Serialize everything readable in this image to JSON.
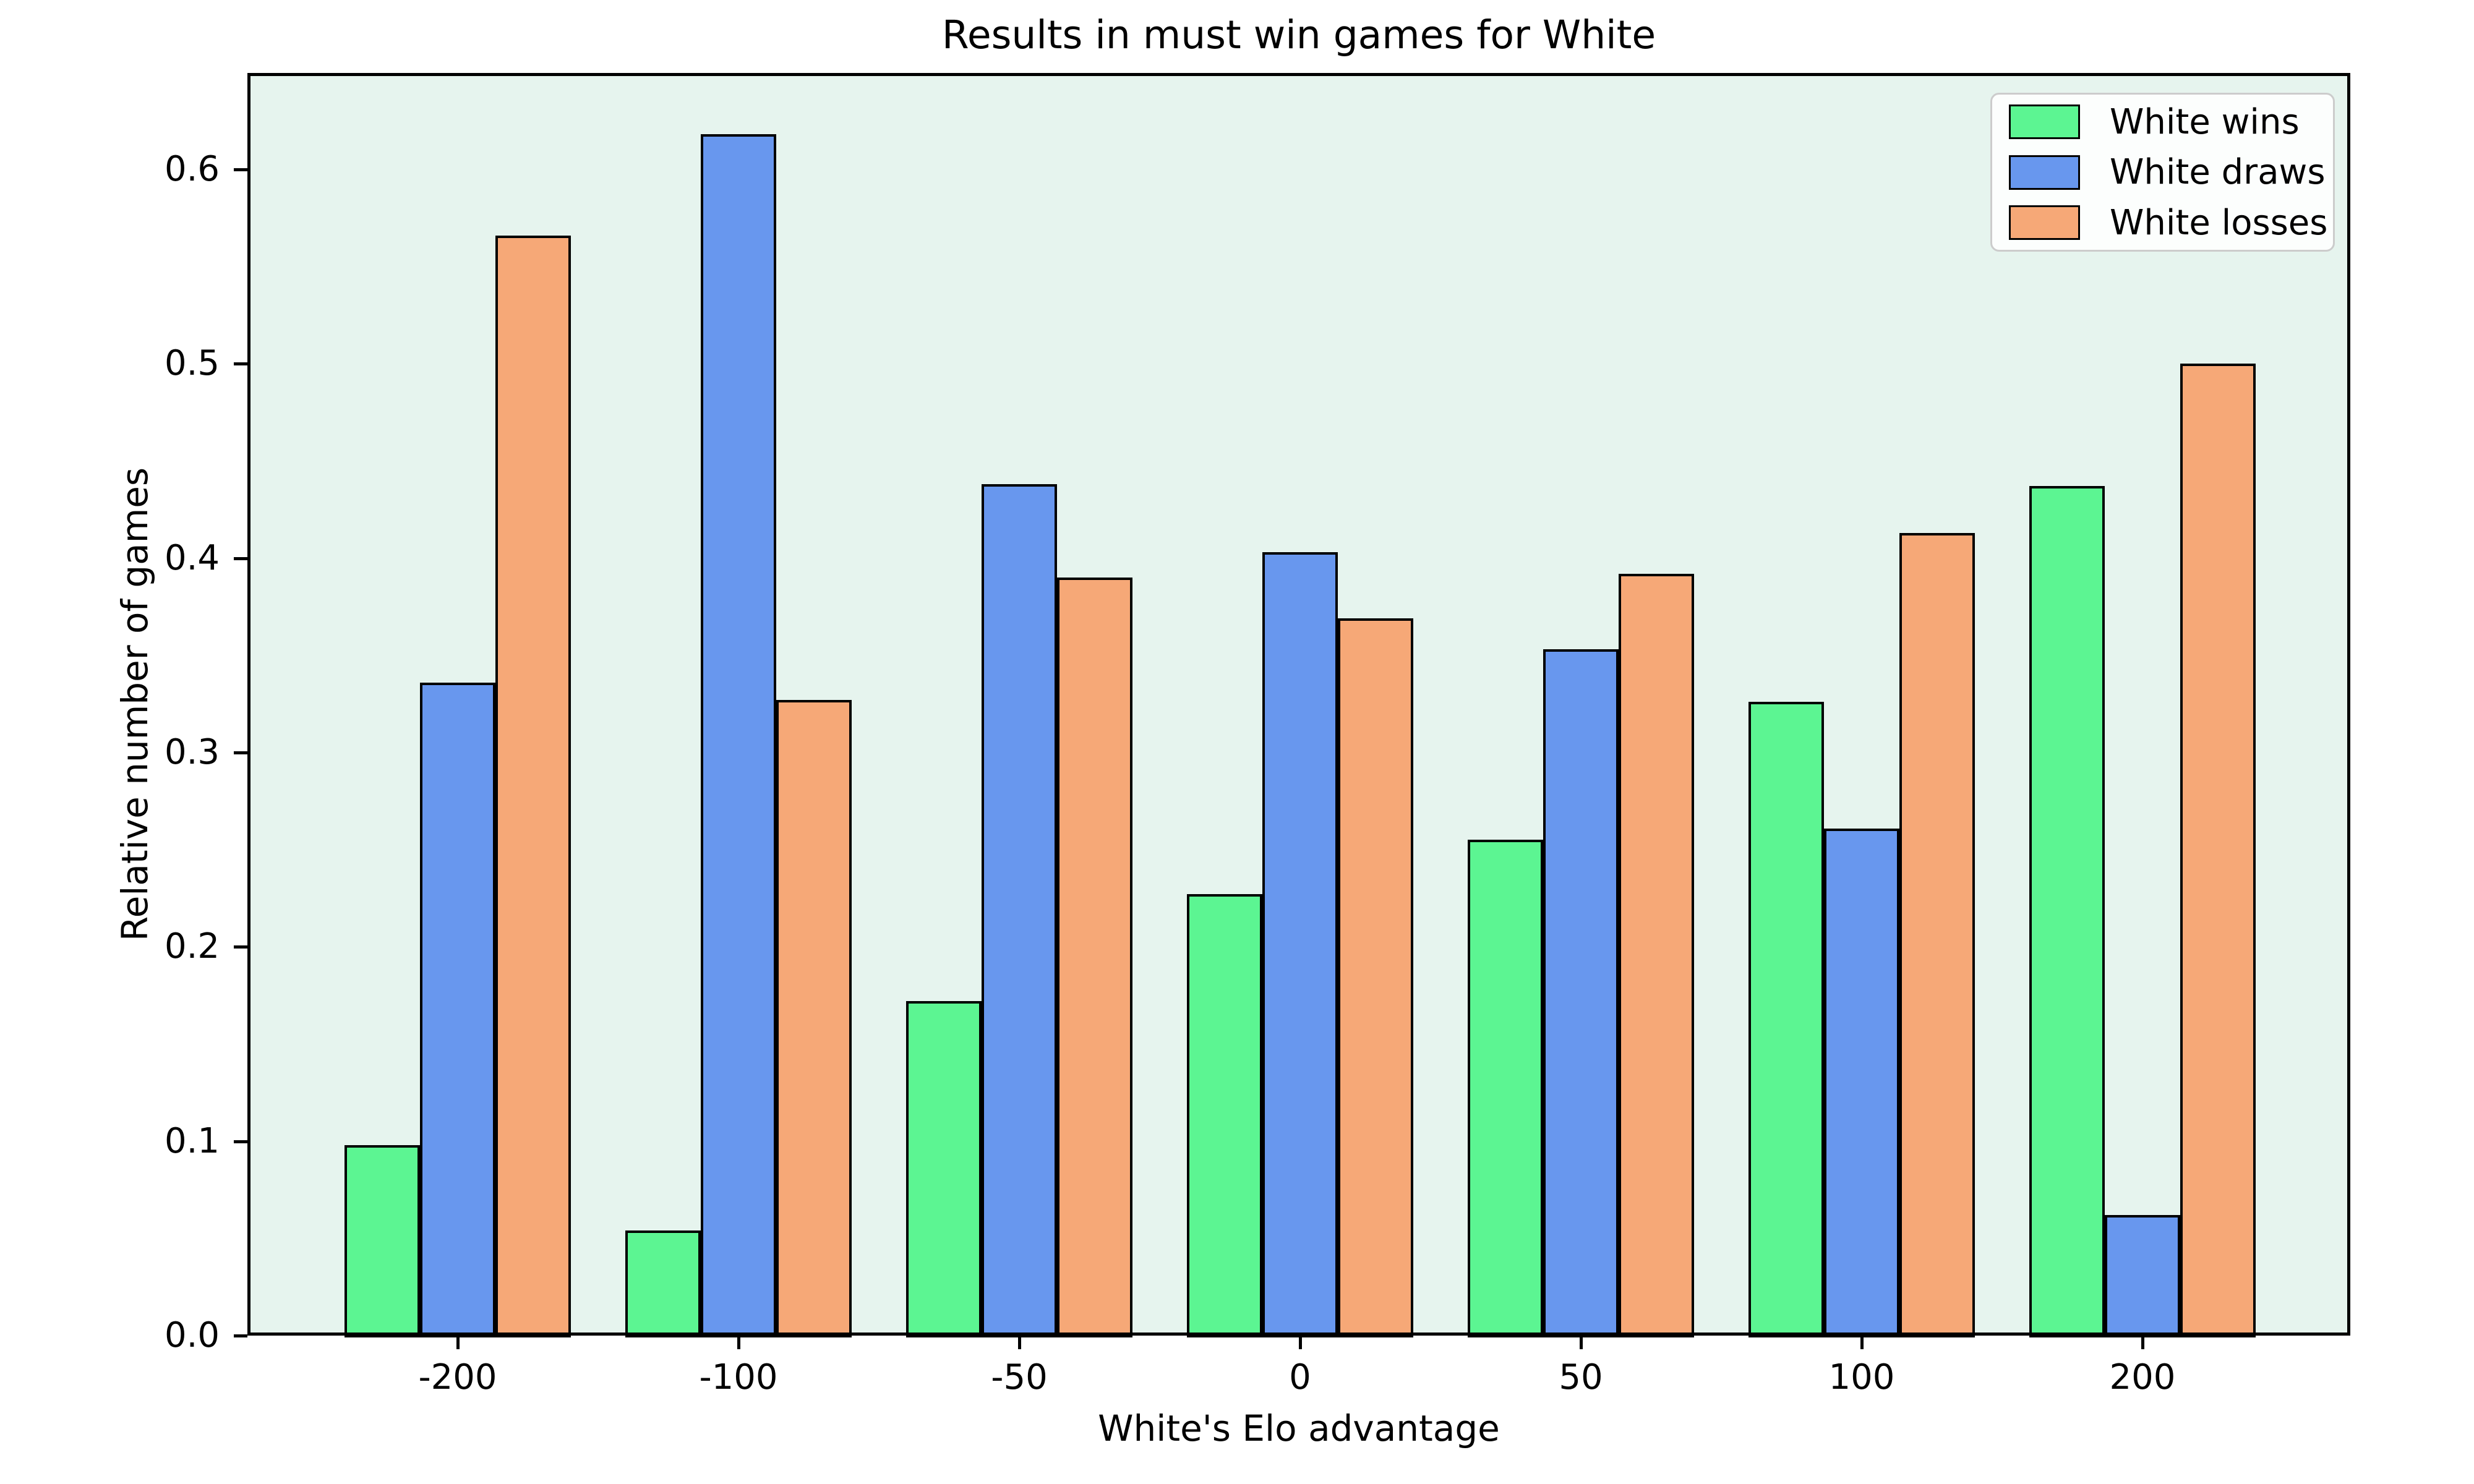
{
  "chart_data": {
    "type": "bar",
    "title": "Results in must win games for White",
    "xlabel": "White's Elo advantage",
    "ylabel": "Relative number of games",
    "categories": [
      "-200",
      "-100",
      "-50",
      "0",
      "50",
      "100",
      "200"
    ],
    "series": [
      {
        "name": "White wins",
        "color": "#5CF592",
        "values": [
          0.098,
          0.054,
          0.172,
          0.227,
          0.255,
          0.326,
          0.437
        ]
      },
      {
        "name": "White draws",
        "color": "#6897EE",
        "values": [
          0.336,
          0.618,
          0.438,
          0.403,
          0.353,
          0.261,
          0.062
        ]
      },
      {
        "name": "White losses",
        "color": "#F6A877",
        "values": [
          0.566,
          0.327,
          0.39,
          0.369,
          0.392,
          0.413,
          0.5
        ]
      }
    ],
    "ylim": [
      0,
      0.65
    ],
    "yticks": [
      "0.0",
      "0.1",
      "0.2",
      "0.3",
      "0.4",
      "0.5",
      "0.6"
    ],
    "grid": false,
    "legend_position": "upper right",
    "plot_background": "#E6F4EE",
    "bar_edge_color": "#000000",
    "text_color": "#000000"
  }
}
